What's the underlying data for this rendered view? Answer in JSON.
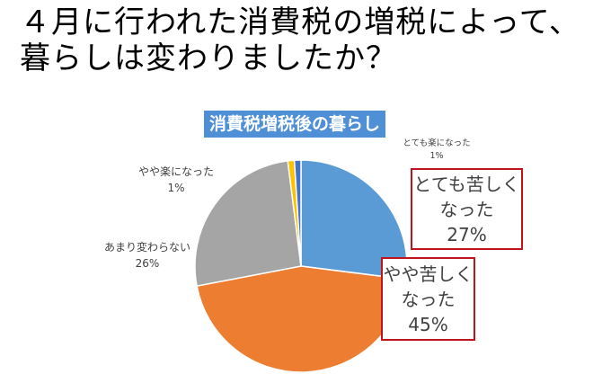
{
  "title": {
    "line1": "４月に行われた消費税の増税によって、",
    "line2": "暮らしは変わりましたか？"
  },
  "chart_data": {
    "type": "pie",
    "title": "消費税増税後の暮らし",
    "slices": [
      {
        "label": "とても苦しくなった",
        "value": 27,
        "pct_text": "27%",
        "lines": [
          "とても苦しく",
          "なった"
        ],
        "color": "#5b9bd5"
      },
      {
        "label": "やや苦しくなった",
        "value": 45,
        "pct_text": "45%",
        "lines": [
          "やや苦しく",
          "なった"
        ],
        "color": "#ed7d31"
      },
      {
        "label": "あまり変わらない",
        "value": 26,
        "pct_text": "26%",
        "lines": [
          "あまり変わらない"
        ],
        "color": "#a5a5a5"
      },
      {
        "label": "やや楽になった",
        "value": 1,
        "pct_text": "1%",
        "lines": [
          "やや楽になった"
        ],
        "color": "#ffc000"
      },
      {
        "label": "とても楽になった",
        "value": 1,
        "pct_text": "1%",
        "lines": [
          "とても楽になった"
        ],
        "color": "#4472c4"
      }
    ]
  }
}
